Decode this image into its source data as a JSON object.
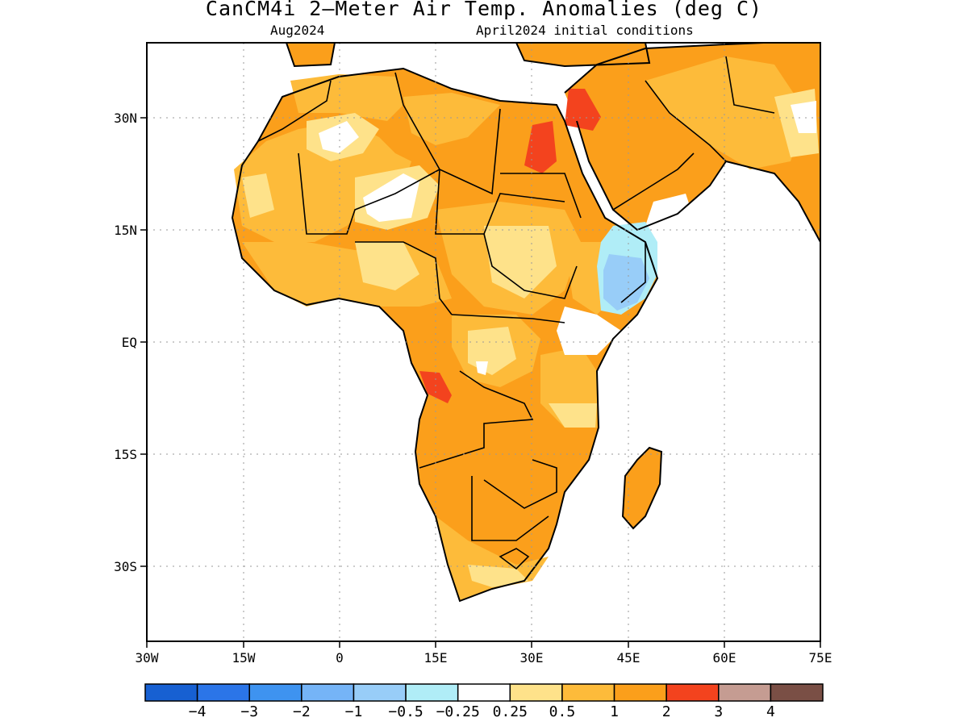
{
  "header": {
    "title": "CanCM4i 2–Meter Air Temp. Anomalies (deg C)",
    "valid_month": "Aug2024",
    "init": "April2024 initial conditions"
  },
  "axes": {
    "lat_labels": [
      "30N",
      "15N",
      "EQ",
      "15S",
      "30S"
    ],
    "lon_labels": [
      "30W",
      "15W",
      "0",
      "15E",
      "30E",
      "45E",
      "60E",
      "75E"
    ]
  },
  "colorbar": {
    "colors": [
      "#1760d2",
      "#2b75e8",
      "#3e93f0",
      "#75b4f7",
      "#98cdf8",
      "#b0edf7",
      "#ffffff",
      "#fee28a",
      "#fdbb3a",
      "#fb9f1b",
      "#f3431e",
      "#c59c92",
      "#7a4f45"
    ],
    "labels": [
      "−4",
      "−3",
      "−2",
      "−1",
      "−0.5",
      "−0.25",
      "0.25",
      "0.5",
      "1",
      "2",
      "3",
      "4"
    ]
  },
  "legend_colors": {
    "ocean": "#ffffff",
    "coastline": "#000000",
    "grid": "#9a9a9a"
  }
}
